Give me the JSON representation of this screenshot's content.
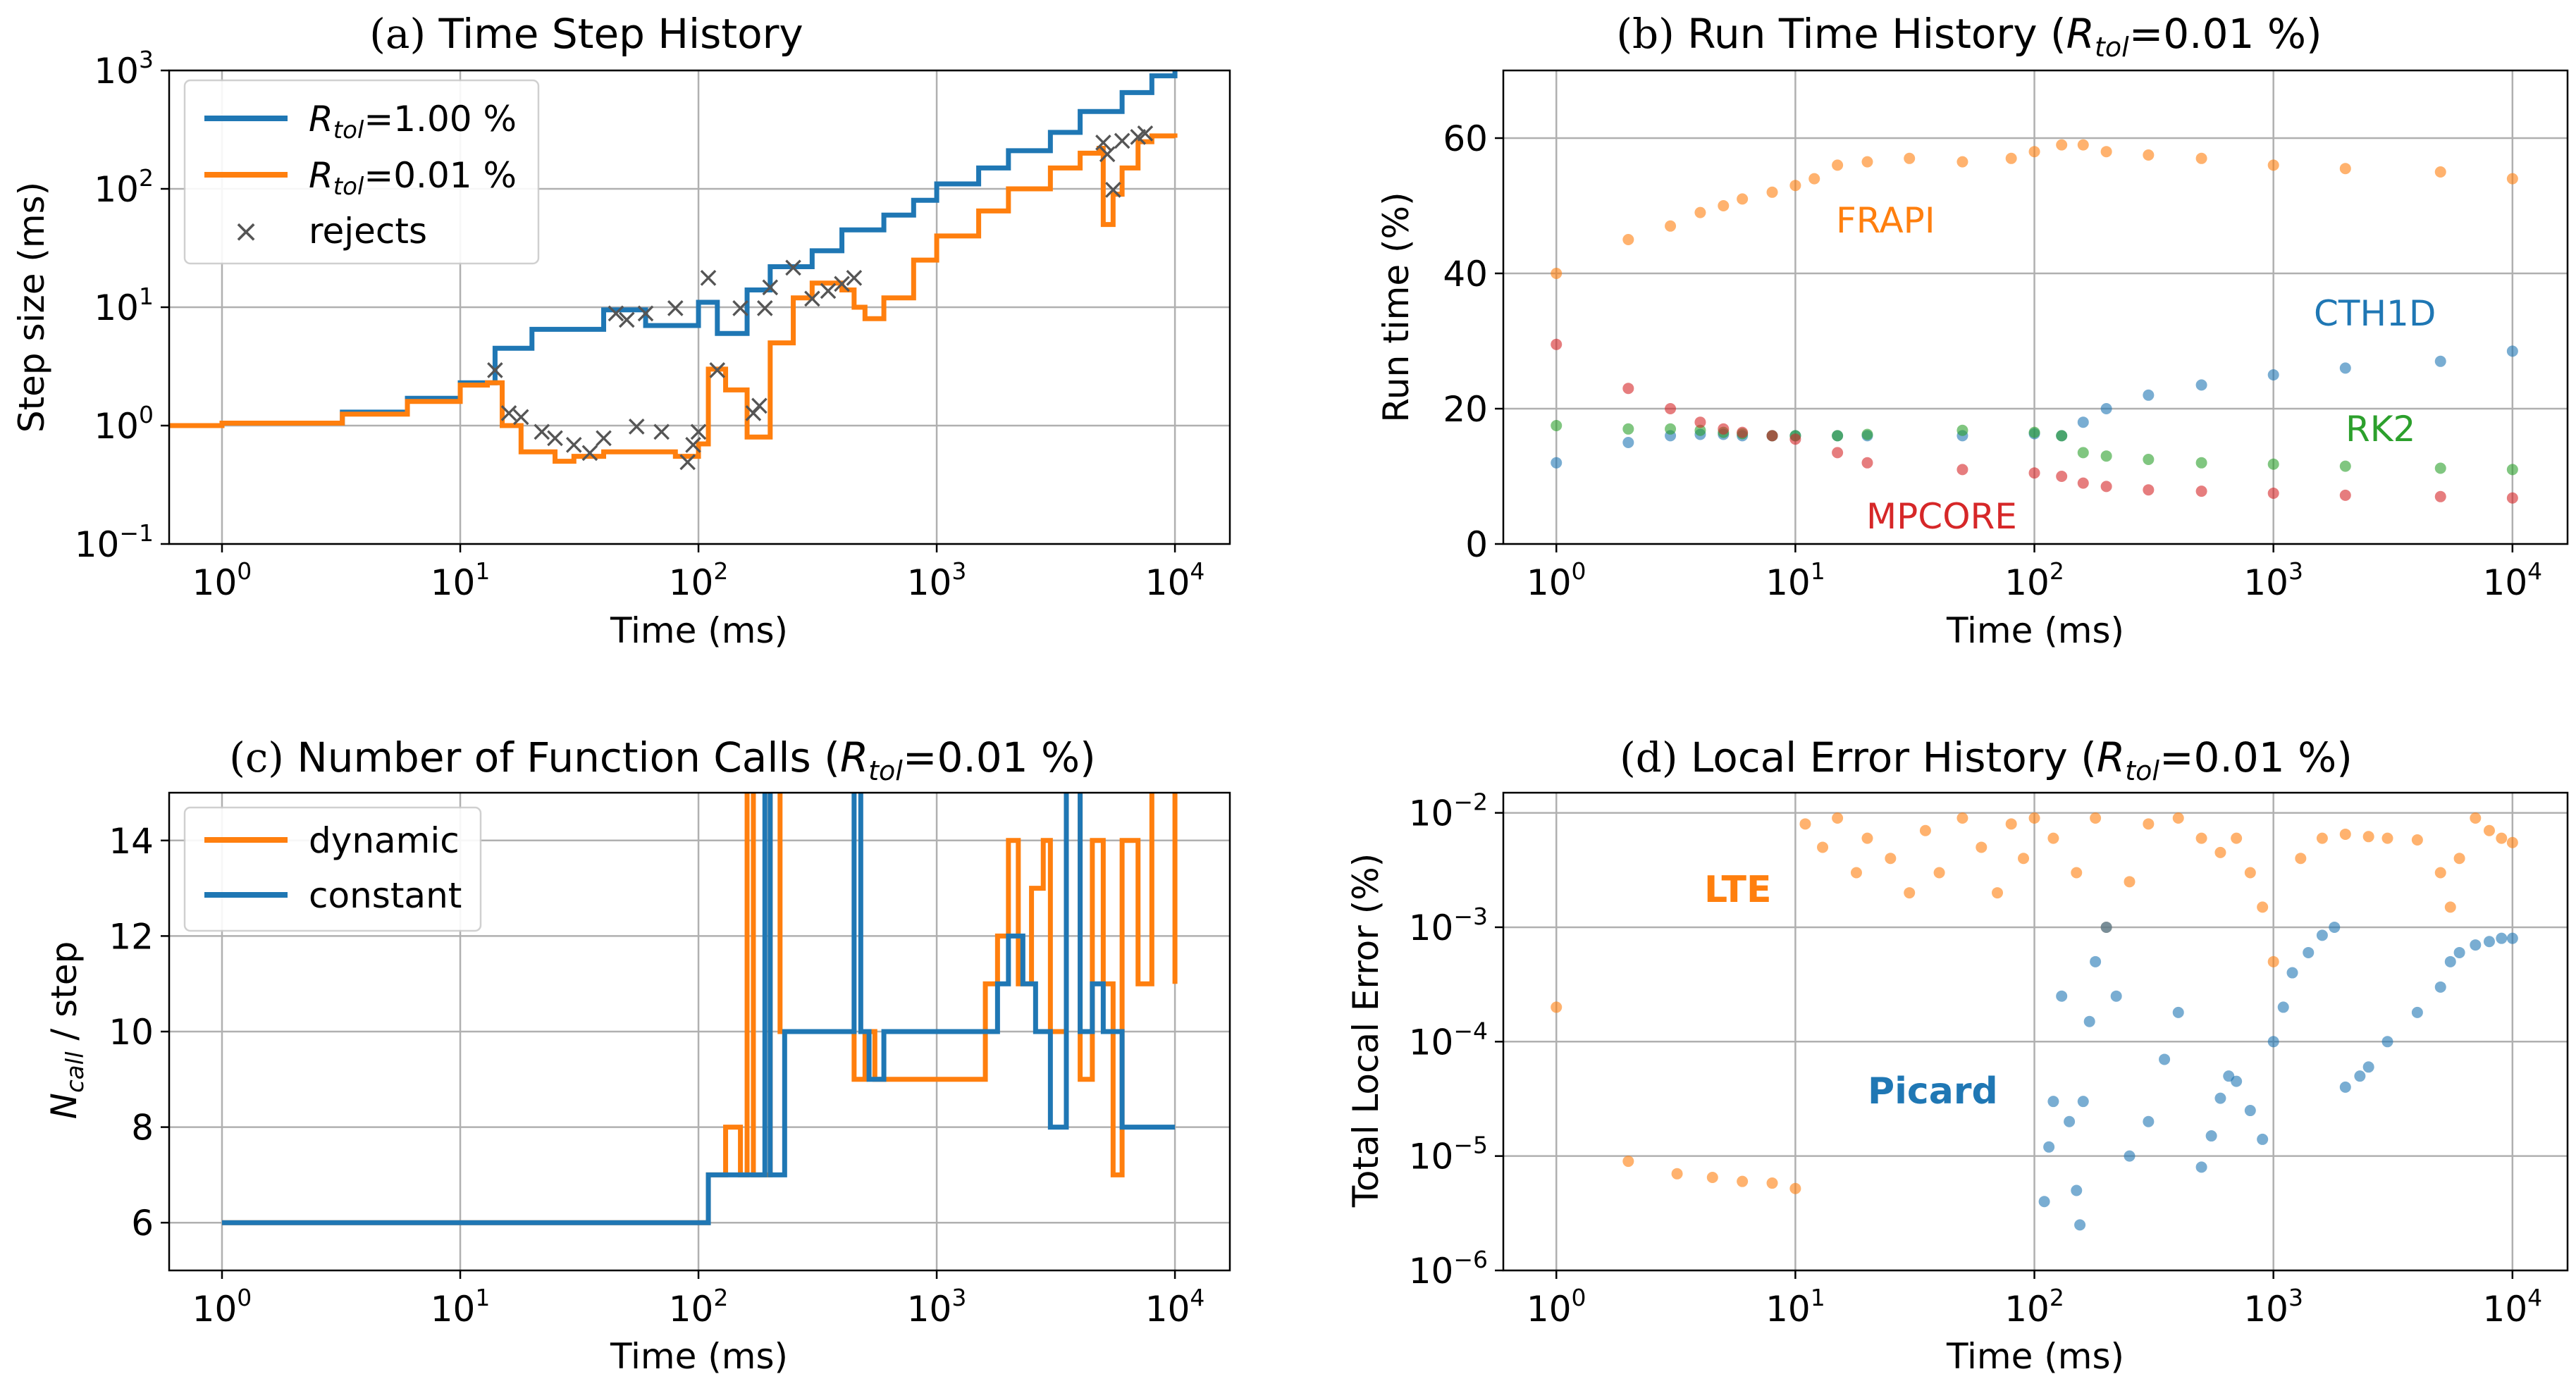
{
  "colors": {
    "blue": "#1f77b4",
    "orange": "#ff7f0e",
    "green": "#2ca02c",
    "red": "#d62728",
    "reject": "#555555"
  },
  "chart_data": [
    {
      "id": "a",
      "type": "line",
      "title_prefix": "(a)",
      "title_text": "Time Step History",
      "xlabel": "Time (ms)",
      "ylabel": "Step size (ms)",
      "xscale": "log",
      "yscale": "log",
      "xlim": [
        0.6,
        17000
      ],
      "ylim": [
        0.1,
        1000
      ],
      "xticks": [
        {
          "base": "10",
          "exp": "0"
        },
        {
          "base": "10",
          "exp": "1"
        },
        {
          "base": "10",
          "exp": "2"
        },
        {
          "base": "10",
          "exp": "3"
        },
        {
          "base": "10",
          "exp": "4"
        }
      ],
      "yticks": [
        {
          "base": "10",
          "exp": "−1"
        },
        {
          "base": "10",
          "exp": "0"
        },
        {
          "base": "10",
          "exp": "1"
        },
        {
          "base": "10",
          "exp": "2"
        },
        {
          "base": "10",
          "exp": "3"
        }
      ],
      "legend_position": "top-left",
      "series": [
        {
          "name": "R_tol=1.00 %",
          "label_main": "R",
          "label_sub": "tol",
          "label_rest": "=1.00 %",
          "color": "blue",
          "style": "step",
          "x": [
            0.6,
            1,
            3.2,
            6,
            10,
            14,
            20,
            40,
            60,
            100,
            120,
            160,
            200,
            300,
            400,
            600,
            800,
            1000,
            1500,
            2000,
            3000,
            4000,
            6000,
            8000,
            10000
          ],
          "y": [
            1.0,
            1.05,
            1.3,
            1.7,
            2.3,
            4.5,
            6.5,
            9.5,
            7,
            11,
            6,
            14,
            22,
            30,
            45,
            60,
            80,
            110,
            150,
            210,
            300,
            450,
            650,
            900,
            1000
          ]
        },
        {
          "name": "R_tol=0.01 %",
          "label_main": "R",
          "label_sub": "tol",
          "label_rest": "=0.01 %",
          "color": "orange",
          "style": "step",
          "x": [
            0.6,
            1,
            3.2,
            6,
            10,
            13,
            15,
            18,
            25,
            30,
            40,
            60,
            80,
            100,
            110,
            130,
            160,
            200,
            250,
            300,
            400,
            450,
            500,
            600,
            800,
            1000,
            1500,
            2000,
            3000,
            4000,
            4800,
            5000,
            5500,
            6000,
            7000,
            8000,
            10000
          ],
          "y": [
            1.0,
            1.05,
            1.25,
            1.6,
            2.2,
            2.3,
            1.0,
            0.6,
            0.5,
            0.55,
            0.6,
            0.6,
            0.55,
            0.7,
            3,
            2,
            0.8,
            5,
            12,
            16,
            14,
            10,
            8,
            12,
            25,
            40,
            65,
            100,
            150,
            200,
            220,
            50,
            90,
            150,
            250,
            280,
            270
          ]
        },
        {
          "name": "rejects",
          "label_main": "rejects",
          "color": "reject",
          "style": "marker-x",
          "x": [
            14,
            16,
            18,
            22,
            25,
            30,
            35,
            40,
            45,
            50,
            55,
            60,
            70,
            80,
            90,
            95,
            100,
            110,
            120,
            150,
            170,
            180,
            190,
            200,
            250,
            300,
            350,
            400,
            450,
            5000,
            5200,
            5500,
            6000,
            7000,
            7500
          ],
          "y": [
            3,
            1.3,
            1.2,
            0.9,
            0.8,
            0.7,
            0.6,
            0.8,
            9,
            8,
            1.0,
            9,
            0.9,
            10,
            0.5,
            0.7,
            0.9,
            18,
            3,
            10,
            1.3,
            1.5,
            10,
            15,
            22,
            12,
            14,
            16,
            18,
            250,
            200,
            100,
            260,
            280,
            300
          ]
        }
      ]
    },
    {
      "id": "b",
      "type": "scatter",
      "title_prefix": "(b)",
      "title_text": "Run Time History (",
      "title_var": "R",
      "title_sub": "tol",
      "title_rest": "=0.01 %)",
      "xlabel": "Time (ms)",
      "ylabel": "Run time (%)",
      "xscale": "log",
      "yscale": "linear",
      "xlim": [
        0.6,
        17000
      ],
      "ylim": [
        0,
        70
      ],
      "xticks": [
        {
          "base": "10",
          "exp": "0"
        },
        {
          "base": "10",
          "exp": "1"
        },
        {
          "base": "10",
          "exp": "2"
        },
        {
          "base": "10",
          "exp": "3"
        },
        {
          "base": "10",
          "exp": "4"
        }
      ],
      "yticks": [
        {
          "value": 0,
          "label": "0"
        },
        {
          "value": 20,
          "label": "20"
        },
        {
          "value": 40,
          "label": "40"
        },
        {
          "value": 60,
          "label": "60"
        }
      ],
      "series": [
        {
          "name": "FRAPI",
          "color": "orange",
          "x": [
            1,
            2,
            3,
            4,
            5,
            6,
            8,
            10,
            12,
            15,
            20,
            30,
            50,
            80,
            100,
            130,
            160,
            200,
            300,
            500,
            1000,
            2000,
            5000,
            10000
          ],
          "y": [
            40,
            45,
            47,
            49,
            50,
            51,
            52,
            53,
            54,
            56,
            56.5,
            57,
            56.5,
            57,
            58,
            59,
            59,
            58,
            57.5,
            57,
            56,
            55.5,
            55,
            54
          ]
        },
        {
          "name": "CTH1D",
          "color": "blue",
          "x": [
            1,
            2,
            3,
            4,
            5,
            6,
            8,
            10,
            15,
            20,
            50,
            100,
            130,
            160,
            200,
            300,
            500,
            1000,
            2000,
            5000,
            10000
          ],
          "y": [
            12,
            15,
            16,
            16.2,
            16.2,
            16,
            16,
            16,
            16,
            16,
            16,
            16.3,
            16,
            18,
            20,
            22,
            23.5,
            25,
            26,
            27,
            28.5
          ]
        },
        {
          "name": "RK2",
          "color": "green",
          "x": [
            1,
            2,
            3,
            4,
            5,
            6,
            8,
            10,
            15,
            20,
            50,
            100,
            130,
            160,
            200,
            300,
            500,
            1000,
            2000,
            5000,
            10000
          ],
          "y": [
            17.5,
            17,
            17,
            16.8,
            16.5,
            16.3,
            16,
            16,
            16,
            16.2,
            16.8,
            16.5,
            16,
            13.5,
            13,
            12.5,
            12,
            11.8,
            11.5,
            11.2,
            11
          ]
        },
        {
          "name": "MPCORE",
          "color": "red",
          "x": [
            1,
            2,
            3,
            4,
            5,
            6,
            8,
            10,
            15,
            20,
            50,
            100,
            130,
            160,
            200,
            300,
            500,
            1000,
            2000,
            5000,
            10000
          ],
          "y": [
            29.5,
            23,
            20,
            18,
            17,
            16.5,
            16,
            15.5,
            13.5,
            12,
            11,
            10.5,
            10,
            9,
            8.5,
            8,
            7.8,
            7.5,
            7.2,
            7,
            6.8
          ]
        }
      ],
      "annotations": [
        {
          "text": "FRAPI",
          "color": "orange"
        },
        {
          "text": "CTH1D",
          "color": "blue"
        },
        {
          "text": "RK2",
          "color": "green"
        },
        {
          "text": "MPCORE",
          "color": "red"
        }
      ]
    },
    {
      "id": "c",
      "type": "line",
      "title_prefix": "(c)",
      "title_text": "Number of Function Calls (",
      "title_var": "R",
      "title_sub": "tol",
      "title_rest": "=0.01 %)",
      "xlabel": "Time (ms)",
      "ylabel_main": "N",
      "ylabel_sub": "call",
      "ylabel_rest": " / step",
      "xscale": "log",
      "yscale": "linear",
      "xlim": [
        0.6,
        17000
      ],
      "ylim": [
        5,
        15
      ],
      "xticks": [
        {
          "base": "10",
          "exp": "0"
        },
        {
          "base": "10",
          "exp": "1"
        },
        {
          "base": "10",
          "exp": "2"
        },
        {
          "base": "10",
          "exp": "3"
        },
        {
          "base": "10",
          "exp": "4"
        }
      ],
      "yticks": [
        {
          "value": 6,
          "label": "6"
        },
        {
          "value": 8,
          "label": "8"
        },
        {
          "value": 10,
          "label": "10"
        },
        {
          "value": 12,
          "label": "12"
        },
        {
          "value": 14,
          "label": "14"
        }
      ],
      "legend_position": "top-left",
      "series": [
        {
          "name": "dynamic",
          "color": "orange",
          "style": "step",
          "x": [
            1,
            110,
            130,
            150,
            160,
            170,
            200,
            220,
            400,
            450,
            500,
            550,
            1600,
            1800,
            2000,
            2200,
            2500,
            2800,
            3000,
            3500,
            4000,
            4500,
            5000,
            5500,
            6000,
            7000,
            8000,
            10000
          ],
          "y": [
            6,
            7,
            8,
            7,
            16,
            7,
            16,
            10,
            10,
            9,
            10,
            9,
            11,
            12,
            14,
            11,
            13,
            14,
            10,
            16,
            9,
            14,
            11,
            7,
            14,
            11,
            16,
            11
          ]
        },
        {
          "name": "constant",
          "color": "blue",
          "style": "step",
          "x": [
            1,
            110,
            140,
            160,
            190,
            200,
            230,
            450,
            480,
            520,
            600,
            1500,
            1800,
            2000,
            2300,
            2600,
            3000,
            3500,
            4000,
            4500,
            5000,
            6000,
            10000
          ],
          "y": [
            6,
            7,
            7,
            7,
            16,
            7,
            10,
            16,
            10,
            9,
            10,
            10,
            11,
            12,
            11,
            10,
            8,
            16,
            10,
            11,
            10,
            8,
            8
          ]
        }
      ]
    },
    {
      "id": "d",
      "type": "scatter",
      "title_prefix": "(d)",
      "title_text": "Local Error History (",
      "title_var": "R",
      "title_sub": "tol",
      "title_rest": "=0.01 %)",
      "xlabel": "Time (ms)",
      "ylabel": "Total Local Error (%)",
      "xscale": "log",
      "yscale": "log",
      "xlim": [
        0.6,
        17000
      ],
      "ylim": [
        1e-06,
        0.015
      ],
      "xticks": [
        {
          "base": "10",
          "exp": "0"
        },
        {
          "base": "10",
          "exp": "1"
        },
        {
          "base": "10",
          "exp": "2"
        },
        {
          "base": "10",
          "exp": "3"
        },
        {
          "base": "10",
          "exp": "4"
        }
      ],
      "yticks": [
        {
          "base": "10",
          "exp": "−6"
        },
        {
          "base": "10",
          "exp": "−5"
        },
        {
          "base": "10",
          "exp": "−4"
        },
        {
          "base": "10",
          "exp": "−3"
        },
        {
          "base": "10",
          "exp": "−2"
        }
      ],
      "series": [
        {
          "name": "LTE",
          "color": "orange",
          "x": [
            1,
            2,
            3.2,
            4.5,
            6,
            8,
            10,
            11,
            13,
            15,
            18,
            20,
            25,
            30,
            35,
            40,
            50,
            60,
            70,
            80,
            90,
            100,
            120,
            150,
            180,
            200,
            250,
            300,
            400,
            500,
            600,
            700,
            800,
            900,
            1000,
            1300,
            1600,
            2000,
            2500,
            3000,
            4000,
            5000,
            5500,
            6000,
            7000,
            8000,
            9000,
            10000
          ],
          "y": [
            0.0002,
            9e-06,
            7e-06,
            6.5e-06,
            6e-06,
            5.8e-06,
            5.2e-06,
            0.008,
            0.005,
            0.009,
            0.003,
            0.006,
            0.004,
            0.002,
            0.007,
            0.003,
            0.009,
            0.005,
            0.002,
            0.008,
            0.004,
            0.009,
            0.006,
            0.003,
            0.009,
            0.001,
            0.0025,
            0.008,
            0.009,
            0.006,
            0.0045,
            0.006,
            0.003,
            0.0015,
            0.0005,
            0.004,
            0.006,
            0.0065,
            0.0062,
            0.006,
            0.0058,
            0.003,
            0.0015,
            0.004,
            0.009,
            0.007,
            0.006,
            0.0055
          ]
        },
        {
          "name": "Picard",
          "color": "blue",
          "x": [
            110,
            115,
            120,
            130,
            140,
            150,
            155,
            160,
            170,
            180,
            200,
            220,
            250,
            300,
            350,
            400,
            500,
            550,
            600,
            650,
            700,
            800,
            900,
            1000,
            1100,
            1200,
            1400,
            1600,
            1800,
            2000,
            2300,
            2500,
            3000,
            4000,
            5000,
            5500,
            6000,
            7000,
            8000,
            9000,
            10000
          ],
          "y": [
            4e-06,
            1.2e-05,
            3e-05,
            0.00025,
            2e-05,
            5e-06,
            2.5e-06,
            3e-05,
            0.00015,
            0.0005,
            0.001,
            0.00025,
            1e-05,
            2e-05,
            7e-05,
            0.00018,
            8e-06,
            1.5e-05,
            3.2e-05,
            5e-05,
            4.5e-05,
            2.5e-05,
            1.4e-05,
            0.0001,
            0.0002,
            0.0004,
            0.0006,
            0.00085,
            0.001,
            4e-05,
            5e-05,
            6e-05,
            0.0001,
            0.00018,
            0.0003,
            0.0005,
            0.0006,
            0.0007,
            0.00075,
            0.0008,
            0.0008
          ]
        }
      ],
      "annotations": [
        {
          "text": "LTE",
          "color": "orange"
        },
        {
          "text": "Picard",
          "color": "blue"
        }
      ]
    }
  ]
}
